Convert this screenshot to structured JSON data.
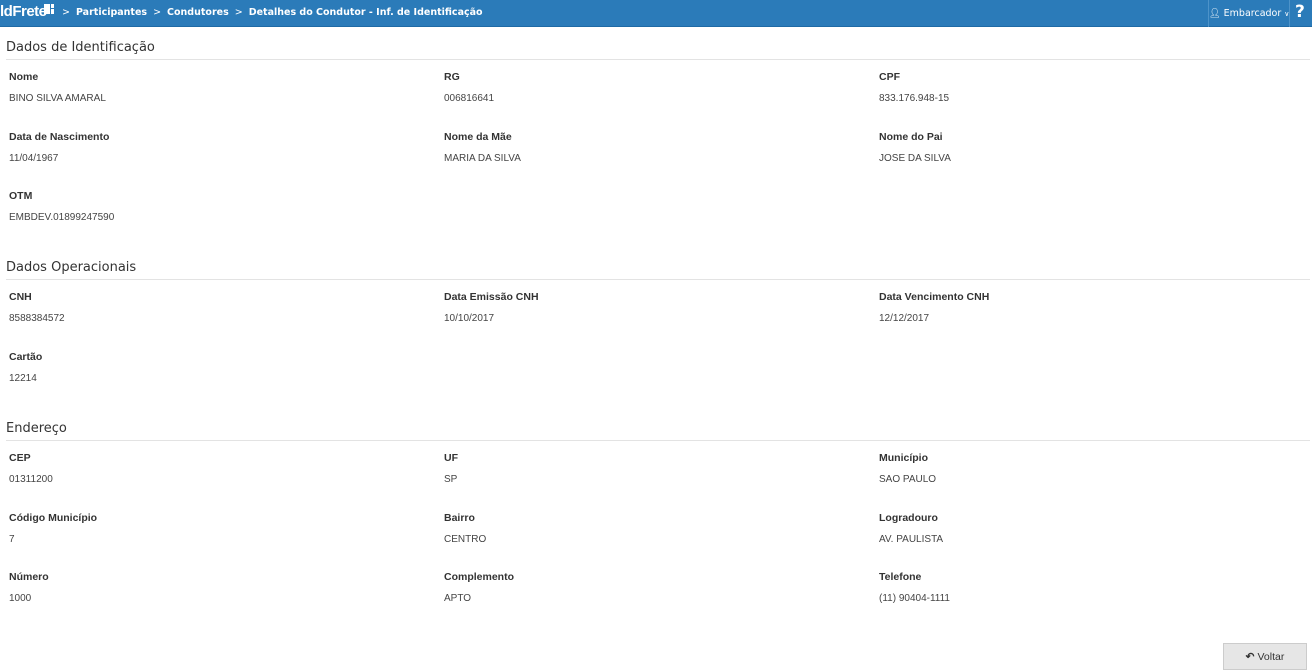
{
  "header": {
    "logo": "ldFrete",
    "breadcrumbs": [
      "Participantes",
      "Condutores",
      "Detalhes do Condutor - Inf. de Identificação"
    ],
    "user": "Embarcador",
    "help": "?",
    "color": "#2b7bb9"
  },
  "sections": [
    {
      "title": "Dados de Identificação",
      "fields": [
        {
          "label": "Nome",
          "value": "BINO SILVA AMARAL"
        },
        {
          "label": "RG",
          "value": "006816641"
        },
        {
          "label": "CPF",
          "value": "833.176.948-15"
        },
        {
          "label": "Data de Nascimento",
          "value": "11/04/1967"
        },
        {
          "label": "Nome da Mãe",
          "value": "MARIA DA SILVA"
        },
        {
          "label": "Nome do Pai",
          "value": "JOSE DA SILVA"
        },
        {
          "label": "OTM",
          "value": "EMBDEV.01899247590"
        }
      ]
    },
    {
      "title": "Dados Operacionais",
      "fields": [
        {
          "label": "CNH",
          "value": "8588384572"
        },
        {
          "label": "Data Emissão CNH",
          "value": "10/10/2017"
        },
        {
          "label": "Data Vencimento CNH",
          "value": "12/12/2017"
        },
        {
          "label": "Cartão",
          "value": "12214"
        }
      ]
    },
    {
      "title": "Endereço",
      "fields": [
        {
          "label": "CEP",
          "value": "01311200"
        },
        {
          "label": "UF",
          "value": "SP"
        },
        {
          "label": "Município",
          "value": "SAO PAULO"
        },
        {
          "label": "Código Município",
          "value": "7"
        },
        {
          "label": "Bairro",
          "value": "CENTRO"
        },
        {
          "label": "Logradouro",
          "value": "AV. PAULISTA"
        },
        {
          "label": "Número",
          "value": "1000"
        },
        {
          "label": "Complemento",
          "value": "APTO"
        },
        {
          "label": "Telefone",
          "value": "(11) 90404-1111"
        }
      ]
    }
  ],
  "actions": {
    "back": "Voltar"
  }
}
